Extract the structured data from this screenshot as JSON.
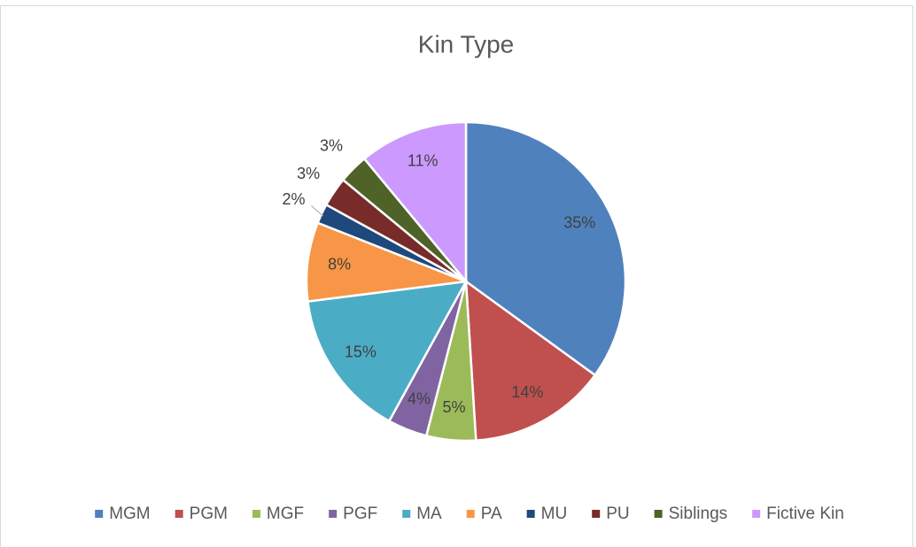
{
  "chart_data": {
    "type": "pie",
    "title": "Kin Type",
    "categories": [
      "MGM",
      "PGM",
      "MGF",
      "PGF",
      "MA",
      "PA",
      "MU",
      "PU",
      "Siblings",
      "Fictive Kin"
    ],
    "values": [
      35,
      14,
      5,
      4,
      15,
      8,
      2,
      3,
      3,
      11
    ],
    "value_labels": [
      "35%",
      "14%",
      "5%",
      "4%",
      "15%",
      "8%",
      "2%",
      "3%",
      "3%",
      "11%"
    ],
    "colors": [
      "#4f81bd",
      "#c0504d",
      "#9bbb59",
      "#8064a2",
      "#4bacc6",
      "#f79646",
      "#1f497d",
      "#772c2a",
      "#4f6228",
      "#cc99ff"
    ],
    "legend": "bottom"
  }
}
